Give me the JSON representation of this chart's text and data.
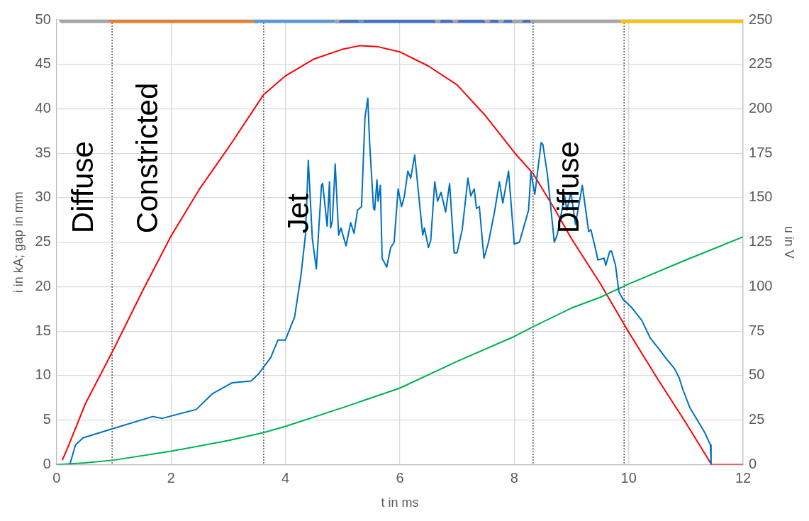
{
  "chart_data": {
    "type": "line",
    "xlabel": "t in ms",
    "ylabel": "i in kA; gap in mm",
    "y2label": "u in V",
    "xlim": [
      0,
      12
    ],
    "xticks": [
      0,
      2,
      4,
      6,
      8,
      10,
      12
    ],
    "ylim": [
      0,
      50
    ],
    "yticks": [
      0,
      5,
      10,
      15,
      20,
      25,
      30,
      35,
      40,
      45,
      50
    ],
    "y2lim": [
      0,
      250
    ],
    "y2ticks": [
      0,
      25,
      50,
      75,
      100,
      125,
      150,
      175,
      200,
      225,
      250
    ],
    "grid": true,
    "line_style": "solid",
    "series": [
      {
        "color": "#ff0000",
        "x": [
          0.1,
          0.2,
          0.5,
          1,
          1.5,
          2,
          2.5,
          3,
          3.62,
          4,
          4.5,
          5,
          5.3,
          5.6,
          6,
          6.5,
          7,
          7.5,
          8,
          8.33,
          8.7,
          9,
          9.5,
          10,
          10.5,
          11,
          11.45,
          12
        ],
        "values": [
          0.5,
          2,
          6.8,
          13,
          19.5,
          25.7,
          31,
          35.6,
          41.6,
          43.7,
          45.6,
          46.7,
          47.1,
          47,
          46.4,
          44.8,
          42.7,
          39.2,
          35.1,
          32.7,
          28.8,
          25.4,
          20.4,
          14.9,
          9.7,
          4.7,
          0,
          0
        ]
      },
      {
        "color": "#00b050",
        "x": [
          0,
          0.5,
          1,
          2,
          3,
          3.62,
          4,
          5,
          6,
          7,
          8,
          8.33,
          9,
          9.5,
          10,
          11,
          12
        ],
        "values": [
          0,
          0.2,
          0.5,
          1.5,
          2.7,
          3.6,
          4.3,
          6.4,
          8.6,
          11.6,
          14.4,
          15.5,
          17.6,
          18.8,
          20.3,
          23,
          25.6
        ]
      },
      {
        "axis": "y2",
        "color": "#0070c0",
        "x": [
          0.23,
          0.33,
          0.46,
          0.96,
          1.68,
          1.85,
          2.44,
          2.73,
          3.07,
          3.4,
          3.53,
          3.74,
          3.87,
          4.0,
          4.16,
          4.27,
          4.35,
          4.4,
          4.47,
          4.54,
          4.63,
          4.65,
          4.73,
          4.77,
          4.79,
          4.82,
          4.87,
          4.93,
          4.97,
          5.06,
          5.14,
          5.2,
          5.26,
          5.33,
          5.39,
          5.44,
          5.47,
          5.54,
          5.56,
          5.6,
          5.62,
          5.66,
          5.69,
          5.77,
          5.84,
          5.9,
          5.97,
          6.03,
          6.08,
          6.14,
          6.19,
          6.26,
          6.4,
          6.43,
          6.5,
          6.54,
          6.61,
          6.66,
          6.72,
          6.8,
          6.87,
          6.95,
          7.0,
          7.09,
          7.19,
          7.24,
          7.3,
          7.34,
          7.39,
          7.47,
          7.55,
          7.66,
          7.74,
          7.8,
          7.9,
          8.0,
          8.09,
          8.17,
          8.25,
          8.29,
          8.36,
          8.47,
          8.5,
          8.58,
          8.7,
          8.75,
          8.88,
          8.92,
          8.99,
          9.07,
          9.19,
          9.3,
          9.34,
          9.43,
          9.46,
          9.57,
          9.6,
          9.67,
          9.7,
          9.77,
          9.83,
          9.9,
          10.06,
          10.23,
          10.38,
          10.53,
          10.67,
          10.8,
          10.88,
          10.95,
          11.07,
          11.2,
          11.33,
          11.43,
          11.44
        ],
        "values": [
          0,
          11,
          15,
          20,
          27,
          26,
          31,
          40,
          46,
          47,
          51,
          60,
          70,
          70,
          83,
          106,
          129,
          171,
          127,
          110,
          157,
          158,
          134,
          159,
          133,
          137,
          169,
          129,
          133,
          123,
          136,
          130,
          143,
          145,
          195,
          206,
          182,
          144,
          143,
          160,
          148,
          157,
          116,
          111,
          122,
          125,
          155,
          145,
          151,
          165,
          161,
          174,
          129,
          133,
          122,
          126,
          159,
          148,
          153,
          142,
          158,
          119,
          119,
          132,
          161,
          151,
          155,
          144,
          145,
          116,
          125,
          143,
          159,
          147,
          165,
          124,
          125,
          134,
          143,
          164,
          152,
          181,
          180,
          163,
          125,
          129,
          151,
          143,
          153,
          135,
          157,
          131,
          132,
          120,
          115,
          116,
          112,
          120,
          120,
          112,
          97,
          93,
          88,
          81,
          71,
          65,
          59,
          54,
          49,
          42,
          32,
          25,
          18,
          11,
          0
        ]
      },
      {
        "marker": "circle",
        "color": "#a5a5a5",
        "x": [
          0.1,
          0.97
        ],
        "values": [
          50,
          50
        ]
      },
      {
        "marker": "circle",
        "color": "#ed7d31",
        "x": [
          0.97,
          3.49
        ],
        "values": [
          50,
          50
        ]
      },
      {
        "marker": "circle",
        "color": "#5b9bd5",
        "x": [
          3.49,
          4.9
        ],
        "values": [
          50,
          50
        ]
      },
      {
        "marker": "circle",
        "color": "#4472c4",
        "x": [
          4.9,
          8.33
        ],
        "values": [
          50,
          50
        ]
      },
      {
        "marker": "circle",
        "color": "#a5a5a5",
        "x": [
          8.33,
          9.9
        ],
        "values": [
          50,
          50
        ]
      },
      {
        "marker": "circle",
        "color": "#ffc000",
        "x": [
          9.9,
          12
        ],
        "values": [
          50,
          50
        ]
      },
      {
        "type": "scatter",
        "marker": "circle",
        "color": "#a5a5a5",
        "x": [
          4.9,
          6.66,
          6.97,
          7.53,
          7.77,
          8.01,
          8.1
        ],
        "values": [
          50,
          50,
          50,
          50,
          50,
          50,
          50
        ]
      },
      {
        "type": "scatter",
        "marker": "circle",
        "color": "#5b9bd5",
        "x": [
          5.32
        ],
        "values": [
          50
        ]
      }
    ],
    "ref_lines": [
      {
        "axis": "x",
        "value": 0.97,
        "color": "#404040",
        "line_style": "dotted"
      },
      {
        "axis": "x",
        "value": 3.62,
        "color": "#404040",
        "line_style": "dotted"
      },
      {
        "axis": "x",
        "value": 8.33,
        "color": "#404040",
        "line_style": "dotted"
      },
      {
        "axis": "x",
        "value": 9.92,
        "color": "#404040",
        "line_style": "dotted"
      }
    ],
    "annotations": [
      "Diffuse",
      "Constricted",
      "Jet",
      "Diffuse"
    ]
  }
}
